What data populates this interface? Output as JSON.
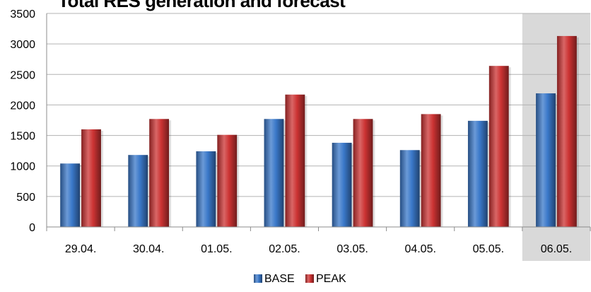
{
  "chart_data": {
    "type": "bar",
    "title": "Total RES generation and forecast",
    "categories": [
      "29.04.",
      "30.04.",
      "01.05.",
      "02.05.",
      "03.05.",
      "04.05.",
      "05.05.",
      "06.05."
    ],
    "series": [
      {
        "name": "BASE",
        "values": [
          1040,
          1180,
          1240,
          1770,
          1380,
          1260,
          1740,
          2190
        ],
        "color": "#3a78c9"
      },
      {
        "name": "PEAK",
        "values": [
          1600,
          1770,
          1510,
          2170,
          1770,
          1850,
          2640,
          3130
        ],
        "color": "#cc3333"
      }
    ],
    "ylim": [
      0,
      3500
    ],
    "yticks": [
      0,
      500,
      1000,
      1500,
      2000,
      2500,
      3000,
      3500
    ],
    "grid": true,
    "highlighted_category": "06.05.",
    "highlight_color": "#d9d9d9",
    "legend_position": "bottom"
  }
}
